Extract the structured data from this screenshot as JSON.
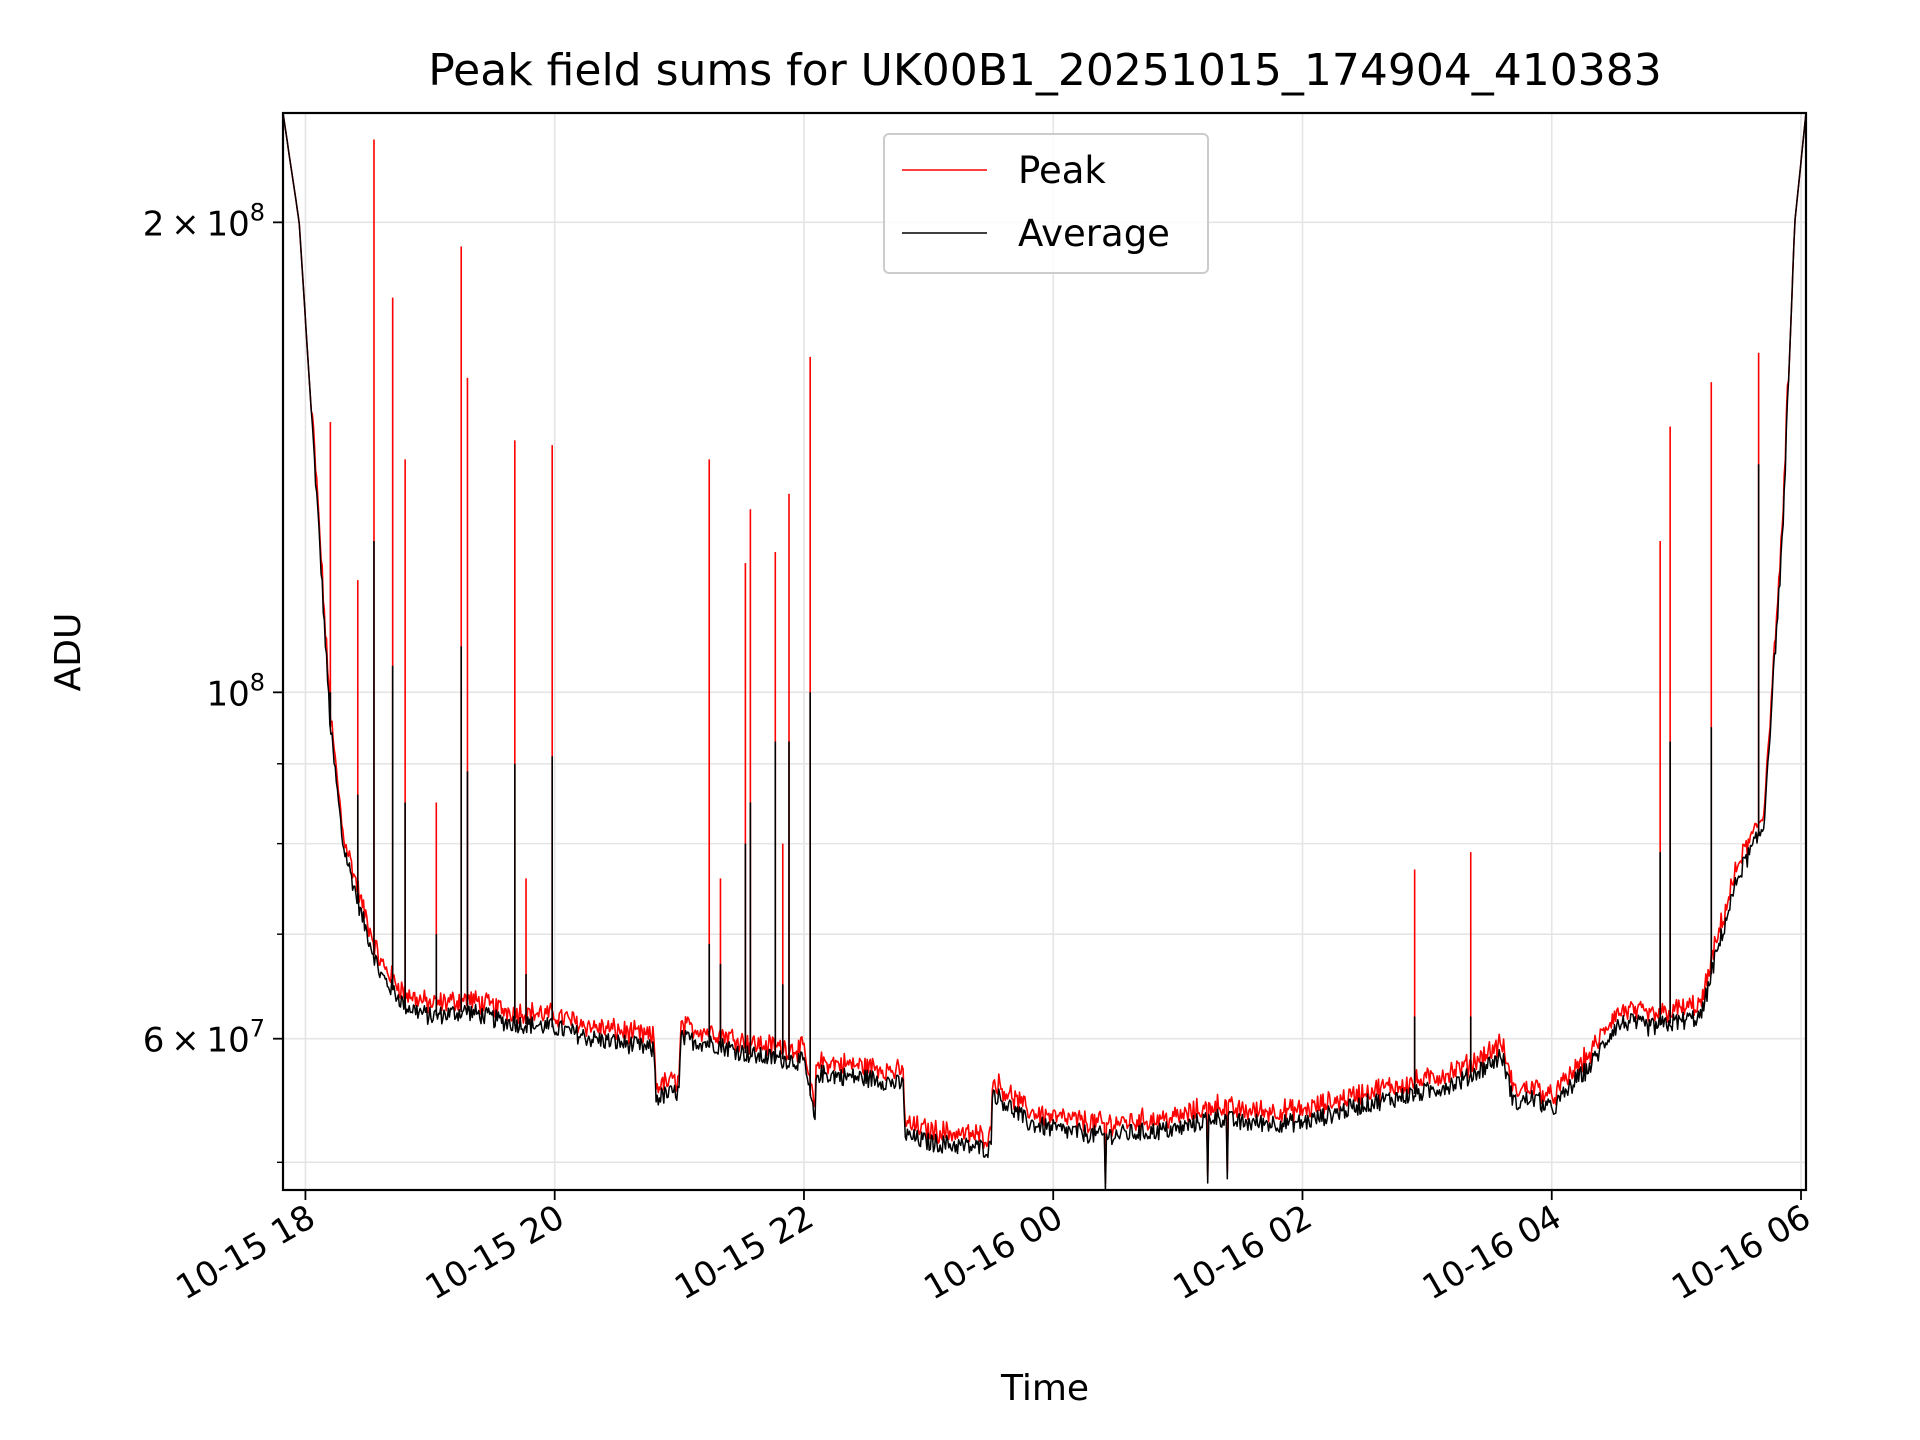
{
  "chart_data": {
    "type": "line",
    "title": "Peak field sums for UK00B1_20251015_174904_410383",
    "xlabel": "Time",
    "ylabel": "ADU",
    "yscale": "log",
    "ylim": [
      48000000,
      235000000
    ],
    "xlim_hours": [
      17.82,
      30.04
    ],
    "grid": true,
    "legend_position": "top-center",
    "x_ticks": [
      {
        "label": "10-15 18",
        "hours": 18
      },
      {
        "label": "10-15 20",
        "hours": 20
      },
      {
        "label": "10-15 22",
        "hours": 22
      },
      {
        "label": "10-16 00",
        "hours": 24
      },
      {
        "label": "10-16 02",
        "hours": 26
      },
      {
        "label": "10-16 04",
        "hours": 28
      },
      {
        "label": "10-16 06",
        "hours": 30
      }
    ],
    "y_ticks": [
      {
        "value": 60000000,
        "base": "6",
        "exp": "7"
      },
      {
        "value": 100000000,
        "base": "",
        "exp": "8"
      },
      {
        "value": 200000000,
        "base": "2",
        "exp": "8"
      }
    ],
    "y_minor_ticks": [
      50000000,
      70000000,
      80000000,
      90000000
    ],
    "series": [
      {
        "name": "Peak",
        "color": "#ff0000"
      },
      {
        "name": "Average",
        "color": "#000000"
      }
    ],
    "baseline_hours": [
      17.82,
      17.95,
      18.1,
      18.2,
      18.3,
      18.45,
      18.6,
      18.8,
      19.0,
      19.3,
      19.6,
      20.0,
      20.3,
      20.6,
      20.8,
      20.81,
      21.0,
      21.01,
      21.3,
      21.6,
      22.0,
      22.09,
      22.1,
      22.6,
      22.8,
      22.81,
      23.0,
      23.5,
      23.51,
      23.8,
      24.0,
      24.4,
      25.0,
      25.3,
      25.5,
      26.0,
      26.5,
      27.0,
      27.3,
      27.6,
      27.7,
      27.85,
      28.0,
      28.2,
      28.3,
      28.5,
      28.6,
      28.8,
      29.0,
      29.2,
      29.3,
      29.5,
      29.7,
      29.85,
      29.95,
      30.04
    ],
    "baseline_values": [
      235000000,
      200000000,
      130000000,
      95000000,
      80000000,
      72000000,
      66000000,
      63000000,
      62000000,
      62500000,
      61500000,
      61000000,
      60000000,
      59500000,
      59000000,
      55000000,
      55500000,
      60000000,
      59500000,
      58500000,
      58000000,
      53000000,
      57000000,
      56500000,
      56000000,
      52000000,
      51500000,
      51000000,
      55500000,
      53000000,
      52500000,
      52000000,
      52500000,
      53500000,
      53000000,
      53000000,
      54500000,
      55500000,
      56500000,
      58500000,
      54500000,
      55000000,
      54000000,
      56500000,
      57500000,
      61000000,
      61500000,
      61000000,
      61500000,
      62000000,
      67000000,
      76500000,
      82000000,
      125000000,
      200000000,
      235000000
    ],
    "spikes": [
      {
        "hours": 18.2,
        "peak": 149000000,
        "average": 100000000
      },
      {
        "hours": 18.42,
        "peak": 118000000,
        "average": 86000000
      },
      {
        "hours": 18.55,
        "peak": 226000000,
        "average": 125000000
      },
      {
        "hours": 18.7,
        "peak": 179000000,
        "average": 104000000
      },
      {
        "hours": 18.8,
        "peak": 141000000,
        "average": 85000000
      },
      {
        "hours": 19.05,
        "peak": 85000000,
        "average": 70000000
      },
      {
        "hours": 19.25,
        "peak": 193000000,
        "average": 107000000
      },
      {
        "hours": 19.3,
        "peak": 159000000,
        "average": 89000000
      },
      {
        "hours": 19.68,
        "peak": 145000000,
        "average": 90000000
      },
      {
        "hours": 19.77,
        "peak": 76000000,
        "average": 66000000
      },
      {
        "hours": 19.98,
        "peak": 144000000,
        "average": 91000000
      },
      {
        "hours": 21.24,
        "peak": 141000000,
        "average": 69000000
      },
      {
        "hours": 21.33,
        "peak": 76000000,
        "average": 67000000
      },
      {
        "hours": 21.53,
        "peak": 121000000,
        "average": 80000000
      },
      {
        "hours": 21.57,
        "peak": 131000000,
        "average": 85000000
      },
      {
        "hours": 21.77,
        "peak": 123000000,
        "average": 93000000
      },
      {
        "hours": 21.83,
        "peak": 80000000,
        "average": 65000000
      },
      {
        "hours": 21.88,
        "peak": 134000000,
        "average": 93000000
      },
      {
        "hours": 22.05,
        "peak": 164000000,
        "average": 100000000
      },
      {
        "hours": 26.9,
        "peak": 77000000,
        "average": 62000000
      },
      {
        "hours": 27.35,
        "peak": 79000000,
        "average": 62000000
      },
      {
        "hours": 28.87,
        "peak": 125000000,
        "average": 79000000
      },
      {
        "hours": 28.95,
        "peak": 148000000,
        "average": 93000000
      },
      {
        "hours": 29.28,
        "peak": 158000000,
        "average": 95000000
      },
      {
        "hours": 29.66,
        "peak": 165000000,
        "average": 140000000
      }
    ],
    "dips": [
      {
        "hours": 24.42,
        "value": 48000000
      },
      {
        "hours": 25.24,
        "value": 48500000
      },
      {
        "hours": 25.4,
        "value": 48800000
      }
    ]
  }
}
